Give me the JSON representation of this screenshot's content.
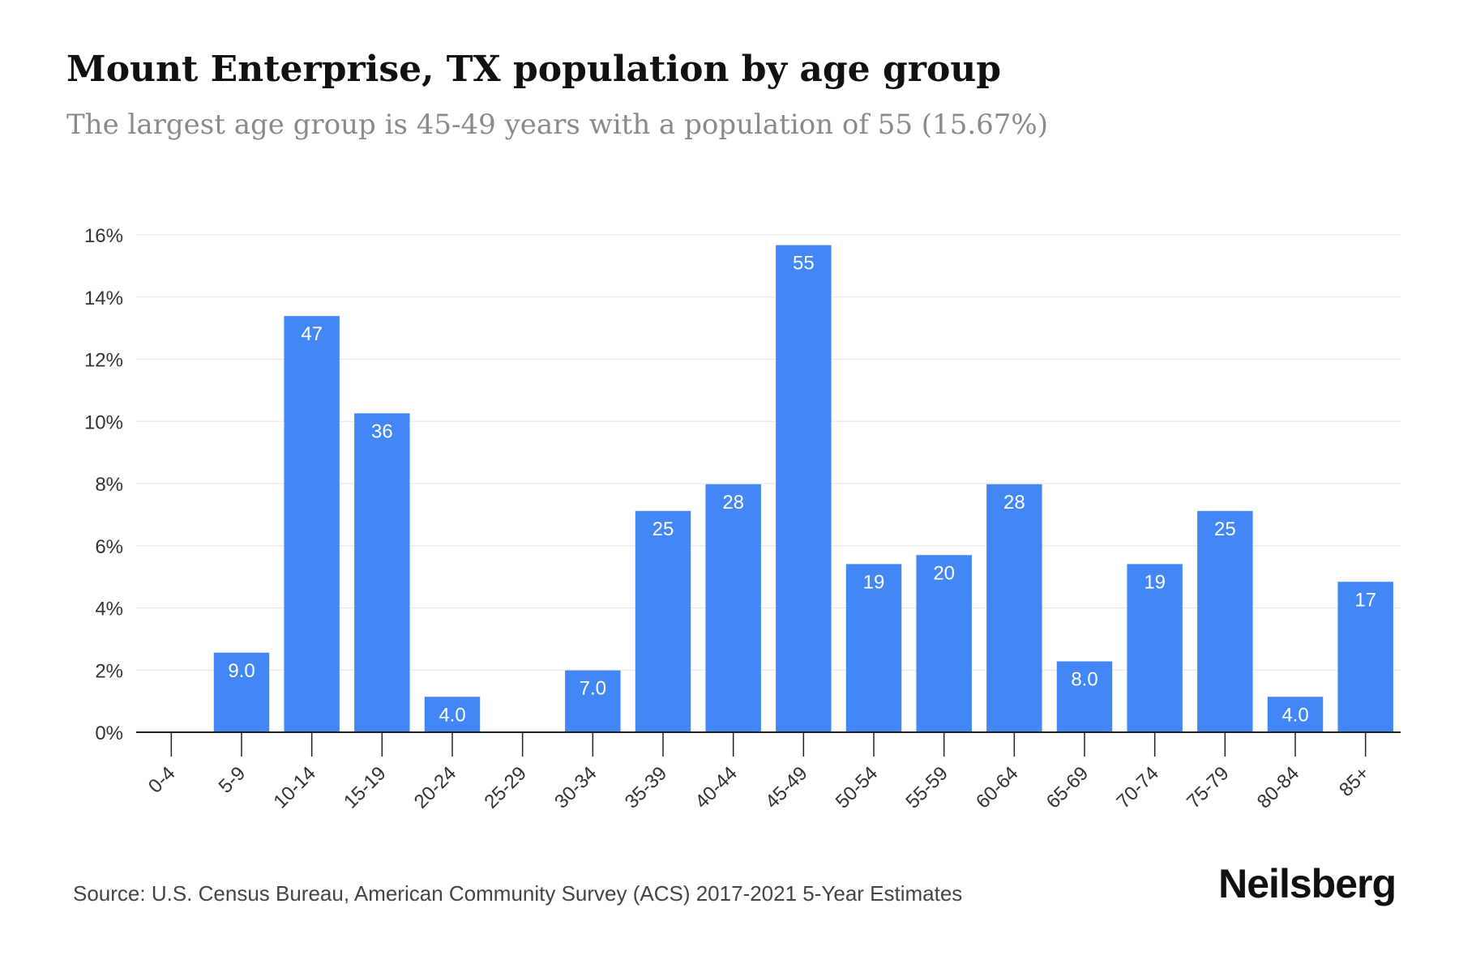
{
  "title": "Mount Enterprise, TX population by age group",
  "subtitle": "The largest age group is 45-49 years with a population of 55 (15.67%)",
  "source": "Source: U.S. Census Bureau, American Community Survey (ACS) 2017-2021 5-Year Estimates",
  "brand": "Neilsberg",
  "colors": {
    "bar": "#4287f5",
    "label": "#ffffff",
    "grid": "#e6e6e6",
    "axis": "#222222",
    "tick_text": "#333333"
  },
  "chart_data": {
    "type": "bar",
    "categories": [
      "0-4",
      "5-9",
      "10-14",
      "15-19",
      "20-24",
      "25-29",
      "30-34",
      "35-39",
      "40-44",
      "45-49",
      "50-54",
      "55-59",
      "60-64",
      "65-69",
      "70-74",
      "75-79",
      "80-84",
      "85+"
    ],
    "values": [
      0,
      2.56,
      13.39,
      10.26,
      1.14,
      0,
      1.99,
      7.12,
      7.98,
      15.67,
      5.41,
      5.7,
      7.98,
      2.28,
      5.41,
      7.12,
      1.14,
      4.84
    ],
    "data_labels": [
      "",
      "9.0",
      "47",
      "36",
      "4.0",
      "",
      "7.0",
      "25",
      "28",
      "55",
      "19",
      "20",
      "28",
      "8.0",
      "19",
      "25",
      "4.0",
      "17"
    ],
    "y_ticks": [
      "0%",
      "2%",
      "4%",
      "6%",
      "8%",
      "10%",
      "12%",
      "14%",
      "16%"
    ],
    "ylim": [
      0,
      16
    ],
    "grid": true
  }
}
